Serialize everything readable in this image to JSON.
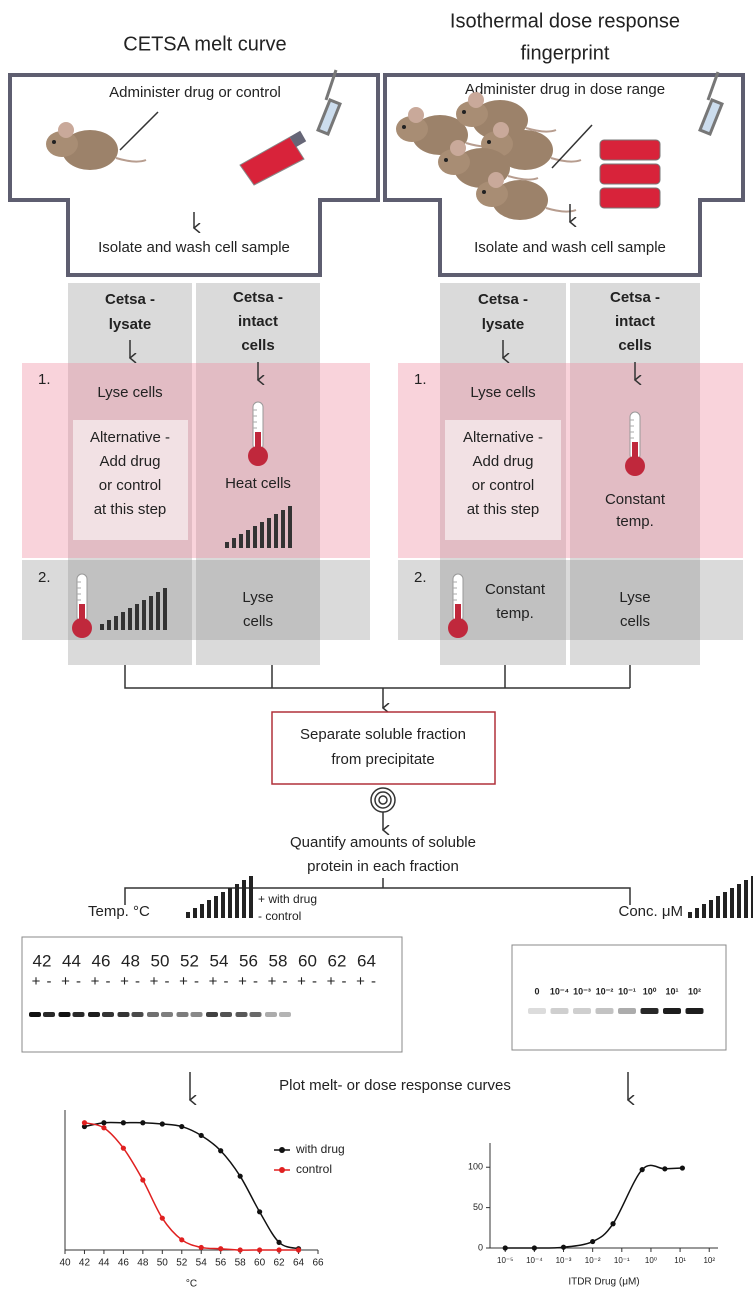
{
  "panels": [
    {
      "title_lines": [
        "CETSA melt curve"
      ],
      "administer": "Administer drug or control",
      "isolate": "Isolate and wash cell sample",
      "columns": [
        {
          "header": [
            "Cetsa -",
            "lysate"
          ]
        },
        {
          "header": [
            "Cetsa -",
            "intact",
            "cells"
          ]
        }
      ],
      "step1": {
        "number": "1.",
        "col1": [
          "Lyse cells"
        ],
        "alternative": [
          "Alternative -",
          "Add drug",
          "or control",
          "at this step"
        ],
        "col2": [
          "Heat cells"
        ]
      },
      "step2": {
        "number": "2.",
        "col2": [
          "Lyse",
          "cells"
        ]
      }
    },
    {
      "title_lines": [
        "Isothermal dose response",
        "fingerprint"
      ],
      "administer": "Administer drug in dose range",
      "isolate": "Isolate and wash cell sample",
      "columns": [
        {
          "header": [
            "Cetsa -",
            "lysate"
          ]
        },
        {
          "header": [
            "Cetsa -",
            "intact",
            "cells"
          ]
        }
      ],
      "step1": {
        "number": "1.",
        "col1": [
          "Lyse cells"
        ],
        "alternative": [
          "Alternative -",
          "Add drug",
          "or control",
          "at this step"
        ],
        "col2": [
          "Constant",
          "temp."
        ]
      },
      "step2": {
        "number": "2.",
        "col1": [
          "Constant",
          "temp."
        ],
        "col2": [
          "Lyse",
          "cells"
        ]
      }
    }
  ],
  "separate": [
    "Separate soluble fraction",
    "from precipitate"
  ],
  "quantify": [
    "Quantify amounts of soluble",
    "protein in each fraction"
  ],
  "left_gel": {
    "label": "Temp. °C",
    "legend": [
      "+ with drug",
      "- control"
    ],
    "lanes": [
      "42",
      "44",
      "46",
      "48",
      "50",
      "52",
      "54",
      "56",
      "58",
      "60",
      "62",
      "64"
    ],
    "plus": "+",
    "minus": "-"
  },
  "right_gel": {
    "label": "Conc. μM",
    "lanes": [
      "0",
      "10⁻⁴",
      "10⁻³",
      "10⁻²",
      "10⁻¹",
      "10⁰",
      "10¹",
      "10²"
    ]
  },
  "plot_caption": "Plot melt- or dose response curves",
  "melt_chart": {
    "type": "line",
    "x_label": "°C",
    "xlim": [
      40,
      66
    ],
    "xticks": [
      40,
      42,
      44,
      46,
      48,
      50,
      52,
      54,
      56,
      58,
      60,
      62,
      64,
      66
    ],
    "ylim": [
      0,
      110
    ],
    "x": [
      42,
      44,
      46,
      48,
      50,
      52,
      54,
      56,
      58,
      60,
      62,
      64
    ],
    "series": [
      {
        "name": "with drug",
        "color": "#111111",
        "values": [
          97,
          100,
          100,
          100,
          99,
          97,
          90,
          78,
          58,
          30,
          6,
          1
        ]
      },
      {
        "name": "control",
        "color": "#e02020",
        "values": [
          100,
          96,
          80,
          55,
          25,
          8,
          2,
          1,
          0,
          0,
          0,
          0
        ]
      }
    ]
  },
  "itdr_chart": {
    "type": "line",
    "log_x": true,
    "x_label": "ITDR Drug (μM)",
    "xlim": [
      3e-06,
      200
    ],
    "xticks": [
      {
        "value": 1e-05,
        "label": "10⁻⁵"
      },
      {
        "value": 0.0001,
        "label": "10⁻⁴"
      },
      {
        "value": 0.001,
        "label": "10⁻³"
      },
      {
        "value": 0.01,
        "label": "10⁻²"
      },
      {
        "value": 0.1,
        "label": "10⁻¹"
      },
      {
        "value": 1,
        "label": "10⁰"
      },
      {
        "value": 10,
        "label": "10¹"
      },
      {
        "value": 100,
        "label": "10²"
      }
    ],
    "ylim": [
      0,
      130
    ],
    "yticks": [
      0,
      50,
      100
    ],
    "color": "#111111",
    "x": [
      1e-05,
      0.0001,
      0.001,
      0.01,
      0.05,
      0.5,
      3,
      12
    ],
    "values": [
      0,
      0,
      1,
      8,
      30,
      97,
      98,
      99
    ]
  }
}
